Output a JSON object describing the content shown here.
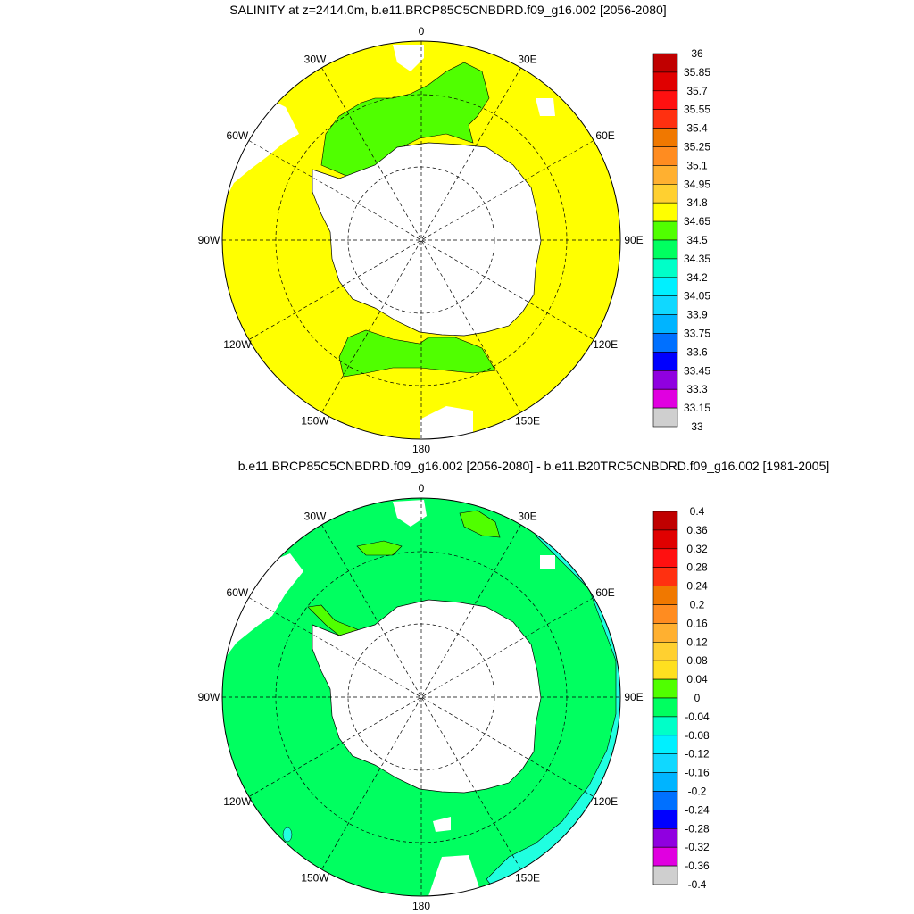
{
  "panels": [
    {
      "title": "SALINITY at z=2414.0m, b.e11.BRCP85C5CNBDRD.f09_g16.002 [2056-2080]",
      "lon_labels": [
        "0",
        "30E",
        "60E",
        "90E",
        "120E",
        "150E",
        "180",
        "150W",
        "120W",
        "90W",
        "60W",
        "30W"
      ],
      "colorbar": {
        "labels": [
          "36",
          "35.85",
          "35.7",
          "35.55",
          "35.4",
          "35.25",
          "35.1",
          "34.95",
          "34.8",
          "34.65",
          "34.5",
          "34.35",
          "34.2",
          "34.05",
          "33.9",
          "33.75",
          "33.6",
          "33.45",
          "33.3",
          "33.15",
          "33"
        ],
        "colors": [
          "#c00000",
          "#e00000",
          "#ff1010",
          "#ff3010",
          "#f07800",
          "#ff8c20",
          "#ffb030",
          "#ffd030",
          "#ffff00",
          "#50ff00",
          "#00ff60",
          "#00ffc8",
          "#00f0ff",
          "#10d8ff",
          "#00b4ff",
          "#0070ff",
          "#0000ff",
          "#9000e0",
          "#e000e0",
          "#cfcfcf",
          "#707070"
        ]
      },
      "fill_colors": {
        "ocean": "#ffff00",
        "highlight": "#50ff00",
        "land": "#ffffff"
      }
    },
    {
      "title": "b.e11.BRCP85C5CNBDRD.f09_g16.002 [2056-2080] - b.e11.B20TRC5CNBDRD.f09_g16.002 [1981-2005]",
      "lon_labels": [
        "0",
        "30E",
        "60E",
        "90E",
        "120E",
        "150E",
        "180",
        "150W",
        "120W",
        "90W",
        "60W",
        "30W"
      ],
      "colorbar": {
        "labels": [
          "0.4",
          "0.36",
          "0.32",
          "0.28",
          "0.24",
          "0.2",
          "0.16",
          "0.12",
          "0.08",
          "0.04",
          "0",
          "-0.04",
          "-0.08",
          "-0.12",
          "-0.16",
          "-0.2",
          "-0.24",
          "-0.28",
          "-0.32",
          "-0.36",
          "-0.4"
        ],
        "colors": [
          "#c00000",
          "#e00000",
          "#ff1010",
          "#ff3010",
          "#f07800",
          "#ff8c20",
          "#ffb030",
          "#ffd030",
          "#ffe020",
          "#50ff00",
          "#00ff60",
          "#00ffc8",
          "#00f0ff",
          "#10d8ff",
          "#00b4ff",
          "#0070ff",
          "#0000ff",
          "#9000e0",
          "#e000e0",
          "#cfcfcf",
          "#707070"
        ]
      },
      "fill_colors": {
        "ocean": "#00ff60",
        "highlight": "#50ff00",
        "edge": "#20ffe0",
        "land": "#ffffff"
      }
    }
  ]
}
